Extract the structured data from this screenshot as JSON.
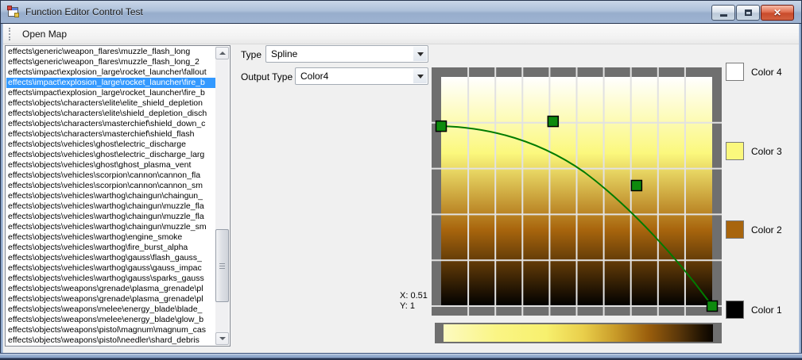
{
  "window": {
    "title": "Function Editor Control Test"
  },
  "titlebar": {
    "close_glyph": "✕"
  },
  "toolbar": {
    "open_map_label": "Open Map"
  },
  "file_list": {
    "selected_index": 3,
    "items": [
      "effects\\generic\\weapon_flares\\muzzle_flash_long",
      "effects\\generic\\weapon_flares\\muzzle_flash_long_2",
      "effects\\impact\\explosion_large\\rocket_launcher\\fallout",
      "effects\\impact\\explosion_large\\rocket_launcher\\fire_b",
      "effects\\impact\\explosion_large\\rocket_launcher\\fire_b",
      "effects\\objects\\characters\\elite\\elite_shield_depletion",
      "effects\\objects\\characters\\elite\\shield_depletion_disch",
      "effects\\objects\\characters\\masterchief\\shield_down_c",
      "effects\\objects\\characters\\masterchief\\shield_flash",
      "effects\\objects\\vehicles\\ghost\\electric_discharge",
      "effects\\objects\\vehicles\\ghost\\electric_discharge_larg",
      "effects\\objects\\vehicles\\ghost\\ghost_plasma_vent",
      "effects\\objects\\vehicles\\scorpion\\cannon\\cannon_fla",
      "effects\\objects\\vehicles\\scorpion\\cannon\\cannon_sm",
      "effects\\objects\\vehicles\\warthog\\chaingun\\chaingun_",
      "effects\\objects\\vehicles\\warthog\\chaingun\\muzzle_fla",
      "effects\\objects\\vehicles\\warthog\\chaingun\\muzzle_fla",
      "effects\\objects\\vehicles\\warthog\\chaingun\\muzzle_sm",
      "effects\\objects\\vehicles\\warthog\\engine_smoke",
      "effects\\objects\\vehicles\\warthog\\fire_burst_alpha",
      "effects\\objects\\vehicles\\warthog\\gauss\\flash_gauss_",
      "effects\\objects\\vehicles\\warthog\\gauss\\gauss_impac",
      "effects\\objects\\vehicles\\warthog\\gauss\\sparks_gauss",
      "effects\\objects\\weapons\\grenade\\plasma_grenade\\pl",
      "effects\\objects\\weapons\\grenade\\plasma_grenade\\pl",
      "effects\\objects\\weapons\\melee\\energy_blade\\blade_",
      "effects\\objects\\weapons\\melee\\energy_blade\\glow_b",
      "effects\\objects\\weapons\\pistol\\magnum\\magnum_cas",
      "effects\\objects\\weapons\\pistol\\needler\\shard_debris"
    ]
  },
  "controls": {
    "type_label": "Type",
    "type_value": "Spline",
    "output_type_label": "Output Type",
    "output_type_value": "Color4"
  },
  "editor": {
    "x_readout": "X: 0.51",
    "y_readout": "Y: 1",
    "curve_color": "#007B00",
    "point_fill": "#0E8A0E",
    "grid_color": "#E2E2E2",
    "points": [
      {
        "x": 0.0,
        "y": 0.785
      },
      {
        "x": 0.413,
        "y": 0.806
      },
      {
        "x": 0.721,
        "y": 0.526
      },
      {
        "x": 1.0,
        "y": 0.0
      }
    ]
  },
  "swatches": [
    {
      "label": "Color 4",
      "color": "#FFFFFF"
    },
    {
      "label": "Color 3",
      "color": "#FBF87D"
    },
    {
      "label": "Color 2",
      "color": "#A8650D"
    },
    {
      "label": "Color 1",
      "color": "#000000"
    }
  ]
}
